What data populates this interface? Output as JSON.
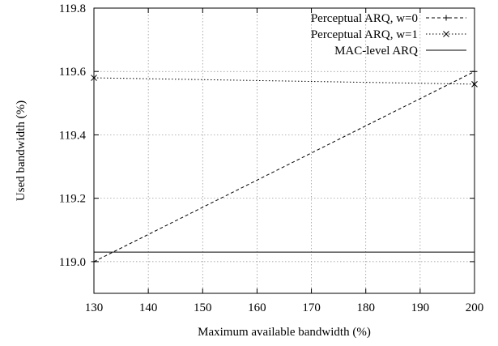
{
  "chart_data": {
    "type": "line",
    "title": "",
    "xlabel": "Maximum available bandwidth (%)",
    "ylabel": "Used bandwidth (%)",
    "xlim": [
      130,
      200
    ],
    "ylim": [
      118.9,
      119.8
    ],
    "xticks": [
      130,
      140,
      150,
      160,
      170,
      180,
      190,
      200
    ],
    "xtick_labels": [
      "130",
      "140",
      "150",
      "160",
      "170",
      "180",
      "190",
      "200"
    ],
    "yticks": [
      119.0,
      119.2,
      119.4,
      119.6,
      119.8
    ],
    "ytick_labels": [
      "119.0",
      "119.2",
      "119.4",
      "119.6",
      "119.8"
    ],
    "grid": true,
    "legend_position": "top-right",
    "series": [
      {
        "name": "Perceptual ARQ, w=0",
        "style": "dashed",
        "marker": "plus",
        "x": [
          130,
          200
        ],
        "y": [
          119.0,
          119.6
        ]
      },
      {
        "name": "Perceptual ARQ, w=1",
        "style": "dotted",
        "marker": "cross",
        "x": [
          130,
          200
        ],
        "y": [
          119.58,
          119.56
        ]
      },
      {
        "name": "MAC-level ARQ",
        "style": "solid",
        "marker": "none",
        "x": [
          130,
          200
        ],
        "y": [
          119.03,
          119.03
        ]
      }
    ]
  }
}
